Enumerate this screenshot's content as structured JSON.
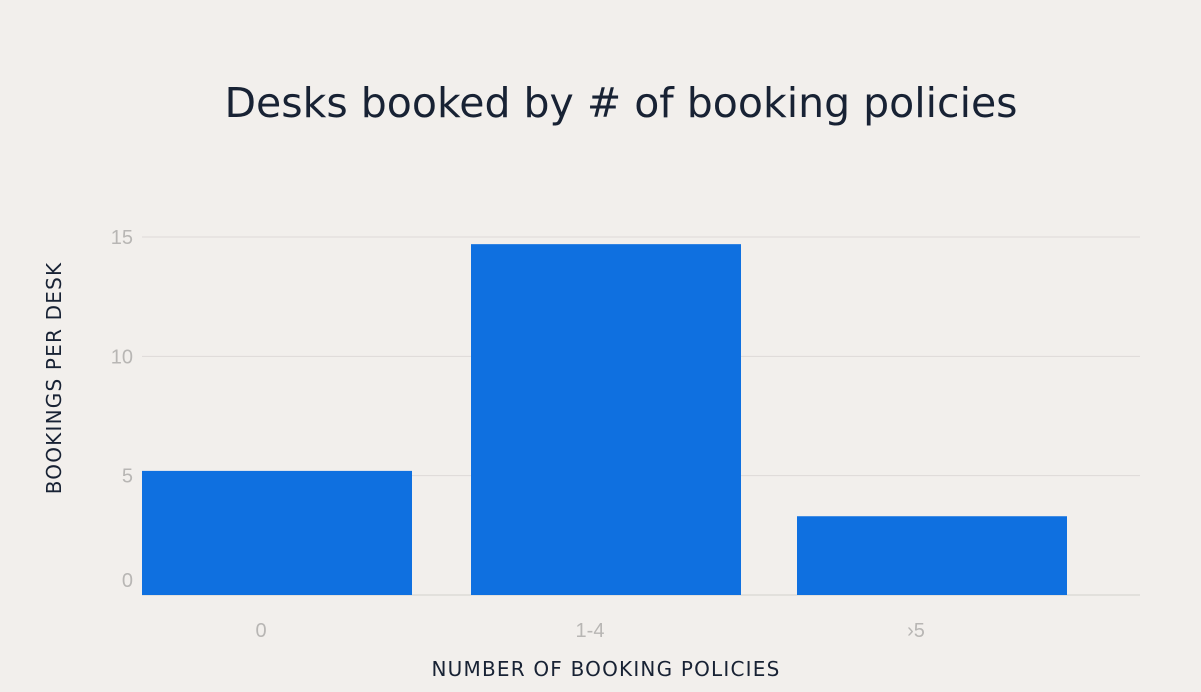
{
  "chart_data": {
    "type": "bar",
    "title": "Desks booked by # of booking policies",
    "xlabel": "NUMBER OF BOOKING POLICIES",
    "ylabel": "BOOKINGS PER DESK",
    "categories": [
      "0",
      "1-4",
      "›5"
    ],
    "values": [
      5.2,
      14.7,
      3.3
    ],
    "yticks": [
      0,
      5,
      10,
      15
    ],
    "ylim": [
      0,
      16.5
    ],
    "grid": true,
    "legend": "none",
    "colors": {
      "bar": "#0f70e0",
      "background": "#f2efec",
      "text": "#182234",
      "tick": "#b8b6b4",
      "grid": "#dddad7"
    }
  }
}
